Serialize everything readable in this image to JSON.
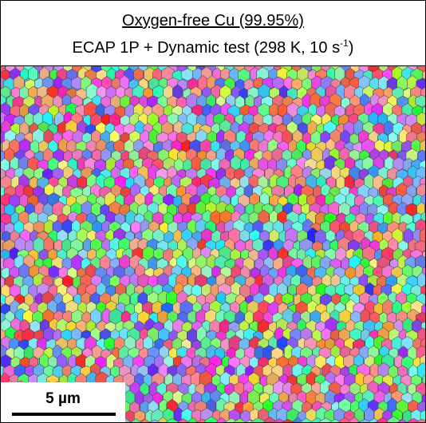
{
  "header": {
    "title": "Oxygen-free Cu (99.95%)",
    "subtitle": "ECAP 1P + Dynamic test (298 K, 10 s",
    "subtitle_superscript": "-1",
    "subtitle_end": ")"
  },
  "scale_bar": {
    "label": "5 µm"
  }
}
